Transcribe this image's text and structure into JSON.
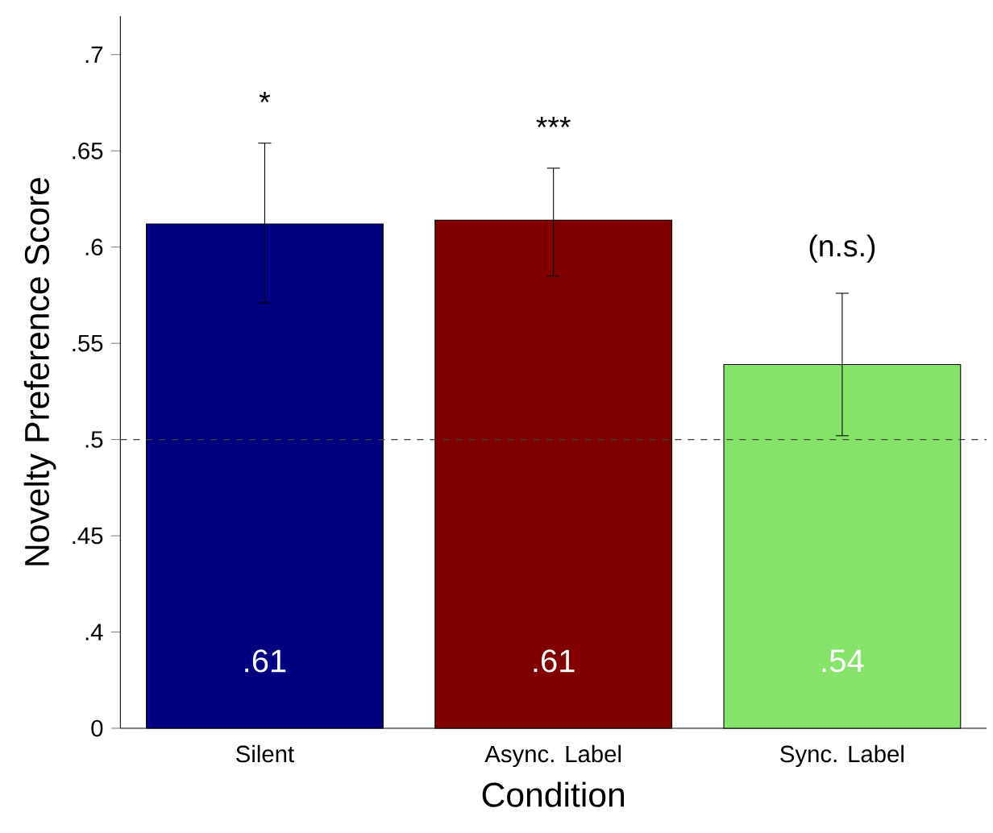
{
  "chart_data": {
    "type": "bar",
    "xlabel": "Condition",
    "ylabel": "Novelty Preference Score",
    "categories": [
      "Silent",
      "Async. Label",
      "Sync. Label"
    ],
    "values": [
      0.612,
      0.614,
      0.539
    ],
    "colors": [
      "#000080",
      "#800000",
      "#86e36a"
    ],
    "errors": [
      [
        0.571,
        0.654
      ],
      [
        0.585,
        0.641
      ],
      [
        0.502,
        0.576
      ]
    ],
    "value_labels": [
      ".61",
      ".61",
      ".54"
    ],
    "annotations": [
      "*",
      "***",
      "(n.s.)"
    ],
    "ref_lines": [
      {
        "axis": "y",
        "value": 0.5,
        "line_style": "dashed",
        "color": "#404040"
      }
    ],
    "ylim": [
      0.35,
      0.72
    ],
    "yticks": [
      {
        "value": 0.35,
        "label": "0"
      },
      {
        "value": 0.4,
        "label": ".4"
      },
      {
        "value": 0.45,
        "label": ".45"
      },
      {
        "value": 0.5,
        "label": ".5"
      },
      {
        "value": 0.55,
        "label": ".55"
      },
      {
        "value": 0.6,
        "label": ".6"
      },
      {
        "value": 0.65,
        "label": ".65"
      },
      {
        "value": 0.7,
        "label": ".7"
      }
    ]
  }
}
